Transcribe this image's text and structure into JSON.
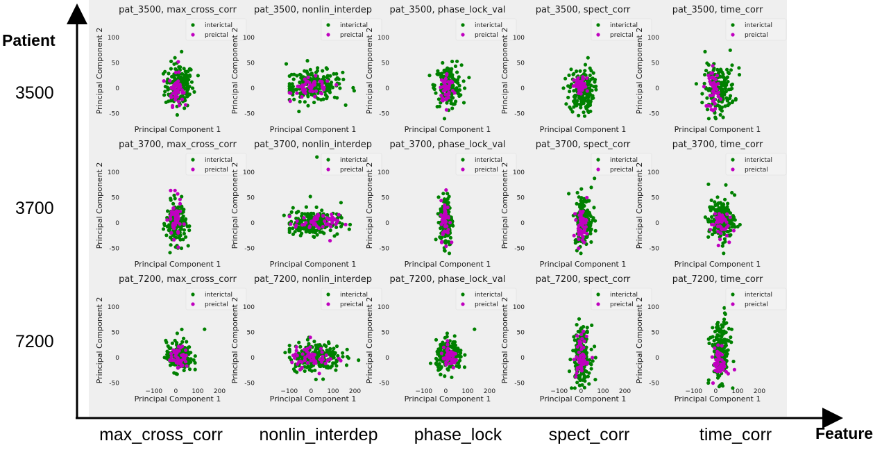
{
  "figure": {
    "y_axis_label": "Patient",
    "x_axis_label": "Feature",
    "patient_labels": [
      "3500",
      "3700",
      "7200"
    ],
    "feature_labels": [
      "max_cross_corr",
      "nonlin_interdep",
      "phase_lock",
      "spect_corr",
      "time_corr"
    ]
  },
  "colors": {
    "panel_background": "#efefef",
    "interictal": "#008000",
    "preictal": "#bf00bf",
    "axis_arrow": "#000000"
  },
  "chart_data": {
    "type": "scatter",
    "xlabel": "Principal Component 1",
    "ylabel": "Principal Component 2",
    "xlim": [
      -150,
      230
    ],
    "ylim": [
      -60,
      140
    ],
    "x_ticks": [
      -100,
      0,
      100,
      200
    ],
    "y_ticks": [
      100,
      50,
      0,
      -50
    ],
    "legend_position": "top-right",
    "series_names": [
      "interictal",
      "preictal"
    ],
    "grid": false,
    "panels": [
      {
        "title": "pat_3500, max_cross_corr",
        "interictal": {
          "cx": 10,
          "cy": 5,
          "sx": 32,
          "sy": 22,
          "n": 170,
          "extra": [
            [
              20,
              72
            ],
            [
              40,
              28
            ],
            [
              95,
              25
            ]
          ]
        },
        "preictal": {
          "cx": -5,
          "cy": -3,
          "sx": 16,
          "sy": 15,
          "n": 45,
          "extra": [
            [
              5,
              52
            ]
          ]
        }
      },
      {
        "title": "pat_3500, nonlin_interdep",
        "interictal": {
          "cx": 5,
          "cy": 5,
          "sx": 65,
          "sy": 15,
          "n": 200,
          "extra": [
            [
              -120,
              48
            ],
            [
              190,
              -5
            ]
          ]
        },
        "preictal": {
          "cx": 0,
          "cy": 0,
          "sx": 45,
          "sy": 10,
          "n": 50,
          "extra": []
        }
      },
      {
        "title": "pat_3500, phase_lock_val",
        "interictal": {
          "cx": 5,
          "cy": 5,
          "sx": 30,
          "sy": 20,
          "n": 170,
          "extra": [
            [
              45,
              53
            ],
            [
              80,
              0
            ]
          ]
        },
        "preictal": {
          "cx": 0,
          "cy": 0,
          "sx": 16,
          "sy": 15,
          "n": 45,
          "extra": []
        }
      },
      {
        "title": "pat_3500, spect_corr",
        "interictal": {
          "cx": -5,
          "cy": -5,
          "sx": 28,
          "sy": 22,
          "n": 170,
          "extra": [
            [
              25,
              60
            ],
            [
              50,
              30
            ],
            [
              10,
              -55
            ]
          ]
        },
        "preictal": {
          "cx": -10,
          "cy": 3,
          "sx": 14,
          "sy": 9,
          "n": 45,
          "extra": [
            [
              20,
              20
            ]
          ]
        }
      },
      {
        "title": "pat_3500, time_corr",
        "interictal": {
          "cx": 10,
          "cy": 0,
          "sx": 35,
          "sy": 22,
          "n": 170,
          "extra": [
            [
              -55,
              72
            ],
            [
              60,
              75
            ],
            [
              100,
              40
            ]
          ]
        },
        "preictal": {
          "cx": -15,
          "cy": 0,
          "sx": 12,
          "sy": 20,
          "n": 45,
          "extra": []
        }
      },
      {
        "title": "pat_3700, max_cross_corr",
        "interictal": {
          "cx": -5,
          "cy": 0,
          "sx": 22,
          "sy": 20,
          "n": 170,
          "extra": [
            [
              50,
              -45
            ]
          ]
        },
        "preictal": {
          "cx": -10,
          "cy": 5,
          "sx": 14,
          "sy": 18,
          "n": 45,
          "extra": [
            [
              -30,
              64
            ],
            [
              -10,
              64
            ],
            [
              5,
              -48
            ]
          ]
        }
      },
      {
        "title": "pat_3700, nonlin_interdep",
        "interictal": {
          "cx": 0,
          "cy": 0,
          "sx": 60,
          "sy": 12,
          "n": 200,
          "extra": [
            [
              20,
              130
            ],
            [
              -10,
              52
            ],
            [
              130,
              40
            ],
            [
              -130,
              15
            ]
          ]
        },
        "preictal": {
          "cx": 20,
          "cy": 0,
          "sx": 50,
          "sy": 8,
          "n": 50,
          "extra": [
            [
              80,
              -35
            ]
          ]
        }
      },
      {
        "title": "pat_3700, phase_lock_val",
        "interictal": {
          "cx": -5,
          "cy": 5,
          "sx": 14,
          "sy": 25,
          "n": 170,
          "extra": [
            [
              10,
              -60
            ]
          ]
        },
        "preictal": {
          "cx": -8,
          "cy": 5,
          "sx": 10,
          "sy": 20,
          "n": 45,
          "extra": [
            [
              -5,
              65
            ]
          ]
        }
      },
      {
        "title": "pat_3700, spect_corr",
        "interictal": {
          "cx": 5,
          "cy": 5,
          "sx": 20,
          "sy": 25,
          "n": 170,
          "extra": [
            [
              55,
              88
            ],
            [
              40,
              70
            ]
          ]
        },
        "preictal": {
          "cx": -5,
          "cy": -5,
          "sx": 12,
          "sy": 15,
          "n": 45,
          "extra": [
            [
              20,
              50
            ]
          ]
        }
      },
      {
        "title": "pat_3700, time_corr",
        "interictal": {
          "cx": 20,
          "cy": 5,
          "sx": 30,
          "sy": 20,
          "n": 170,
          "extra": [
            [
              40,
              75
            ],
            [
              80,
              55
            ],
            [
              30,
              -60
            ]
          ]
        },
        "preictal": {
          "cx": 10,
          "cy": 0,
          "sx": 20,
          "sy": 15,
          "n": 45,
          "extra": []
        }
      },
      {
        "title": "pat_7200, max_cross_corr",
        "interictal": {
          "cx": 10,
          "cy": 2,
          "sx": 30,
          "sy": 15,
          "n": 170,
          "extra": [
            [
              125,
              56
            ],
            [
              0,
              48
            ]
          ]
        },
        "preictal": {
          "cx": 10,
          "cy": 0,
          "sx": 20,
          "sy": 10,
          "n": 45,
          "extra": []
        }
      },
      {
        "title": "pat_7200, nonlin_interdep",
        "interictal": {
          "cx": 10,
          "cy": 3,
          "sx": 60,
          "sy": 15,
          "n": 200,
          "extra": [
            [
              -125,
              10
            ],
            [
              210,
              -5
            ]
          ]
        },
        "preictal": {
          "cx": 0,
          "cy": 0,
          "sx": 50,
          "sy": 10,
          "n": 50,
          "extra": [
            [
              -10,
              40
            ]
          ]
        }
      },
      {
        "title": "pat_7200, phase_lock_val",
        "interictal": {
          "cx": 10,
          "cy": 2,
          "sx": 30,
          "sy": 15,
          "n": 170,
          "extra": [
            [
              125,
              56
            ],
            [
              0,
              48
            ]
          ]
        },
        "preictal": {
          "cx": 10,
          "cy": 0,
          "sx": 20,
          "sy": 10,
          "n": 45,
          "extra": []
        }
      },
      {
        "title": "pat_7200, spect_corr",
        "interictal": {
          "cx": -5,
          "cy": 5,
          "sx": 20,
          "sy": 28,
          "n": 170,
          "extra": [
            [
              -50,
              -60
            ],
            [
              60,
              0
            ]
          ]
        },
        "preictal": {
          "cx": -5,
          "cy": 0,
          "sx": 12,
          "sy": 22,
          "n": 45,
          "extra": [
            [
              45,
              0
            ]
          ]
        }
      },
      {
        "title": "pat_7200, time_corr",
        "interictal": {
          "cx": 15,
          "cy": 15,
          "sx": 22,
          "sy": 30,
          "n": 170,
          "extra": [
            [
              35,
              88
            ],
            [
              -40,
              -50
            ]
          ]
        },
        "preictal": {
          "cx": 15,
          "cy": -10,
          "sx": 15,
          "sy": 15,
          "n": 45,
          "extra": []
        }
      }
    ]
  }
}
